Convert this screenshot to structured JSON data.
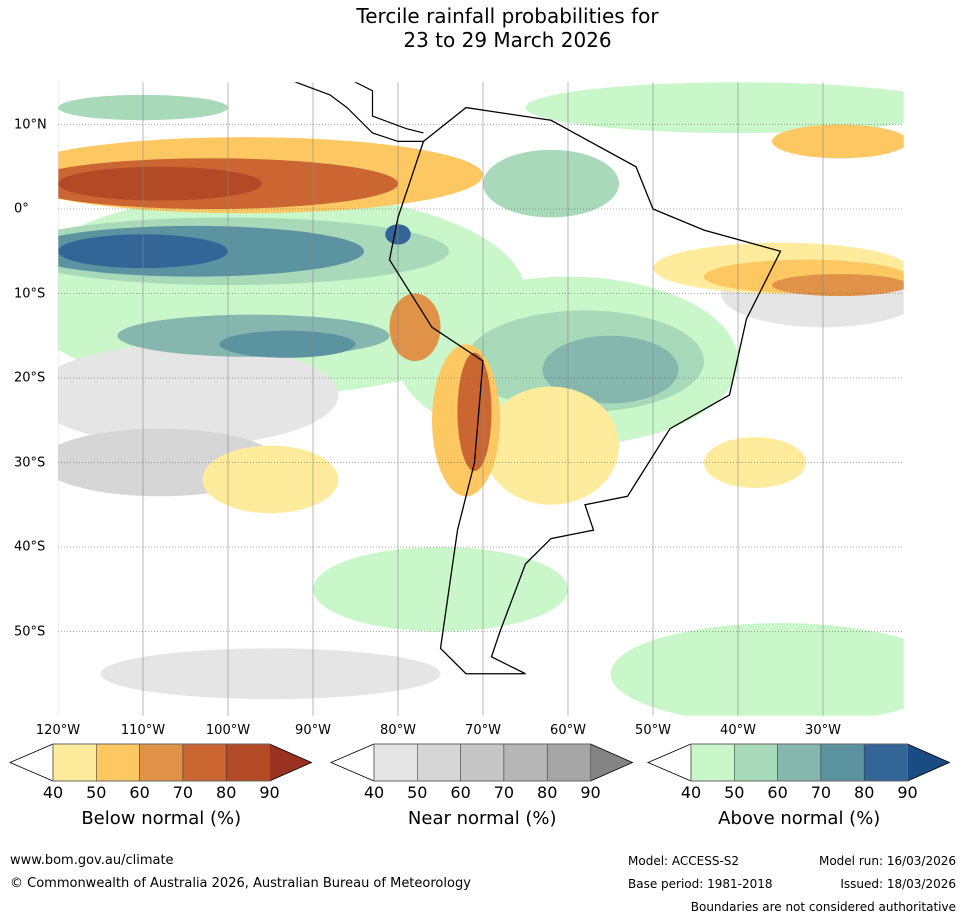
{
  "title": {
    "line1": "Tercile rainfall probabilities for",
    "line2": "23 to 29 March 2026"
  },
  "map": {
    "lon_labels": [
      "120°W",
      "110°W",
      "100°W",
      "90°W",
      "80°W",
      "70°W",
      "60°W",
      "50°W",
      "40°W",
      "30°W"
    ],
    "lon_values": [
      -120,
      -110,
      -100,
      -90,
      -80,
      -70,
      -60,
      -50,
      -40,
      -30
    ],
    "lat_labels": [
      "10°N",
      "0°",
      "10°S",
      "20°S",
      "30°S",
      "40°S",
      "50°S"
    ],
    "lat_values": [
      10,
      0,
      -10,
      -20,
      -30,
      -40,
      -50
    ],
    "extent": {
      "lon": [
        -120,
        -20.5
      ],
      "lat": [
        -60,
        15
      ]
    }
  },
  "colorbars": [
    {
      "title": "Below normal (%)",
      "ticks": [
        "40",
        "50",
        "60",
        "70",
        "80",
        "90"
      ],
      "colors": [
        "#ffffff",
        "#ffeb9c",
        "#fdc862",
        "#df9248",
        "#cb6632",
        "#b24a26",
        "#993320"
      ]
    },
    {
      "title": "Near normal (%)",
      "ticks": [
        "40",
        "50",
        "60",
        "70",
        "80",
        "90"
      ],
      "colors": [
        "#ffffff",
        "#e5e5e5",
        "#d6d6d6",
        "#c6c6c6",
        "#b6b6b6",
        "#a5a5a5",
        "#848484"
      ]
    },
    {
      "title": "Above normal (%)",
      "ticks": [
        "40",
        "50",
        "60",
        "70",
        "80",
        "90"
      ],
      "colors": [
        "#ffffff",
        "#c9f7ca",
        "#a8d9b8",
        "#85b7ae",
        "#5b93a1",
        "#336697",
        "#1a4c84"
      ]
    }
  ],
  "footer": {
    "website": "www.bom.gov.au/climate",
    "copyright": "© Commonwealth of Australia 2026, Australian Bureau of Meteorology",
    "model": "Model: ACCESS-S2",
    "model_run": "Model run: 16/03/2026",
    "base_period": "Base period: 1981-2018",
    "issued": "Issued: 18/03/2026",
    "disclaimer": "Boundaries are not considered authoritative"
  }
}
